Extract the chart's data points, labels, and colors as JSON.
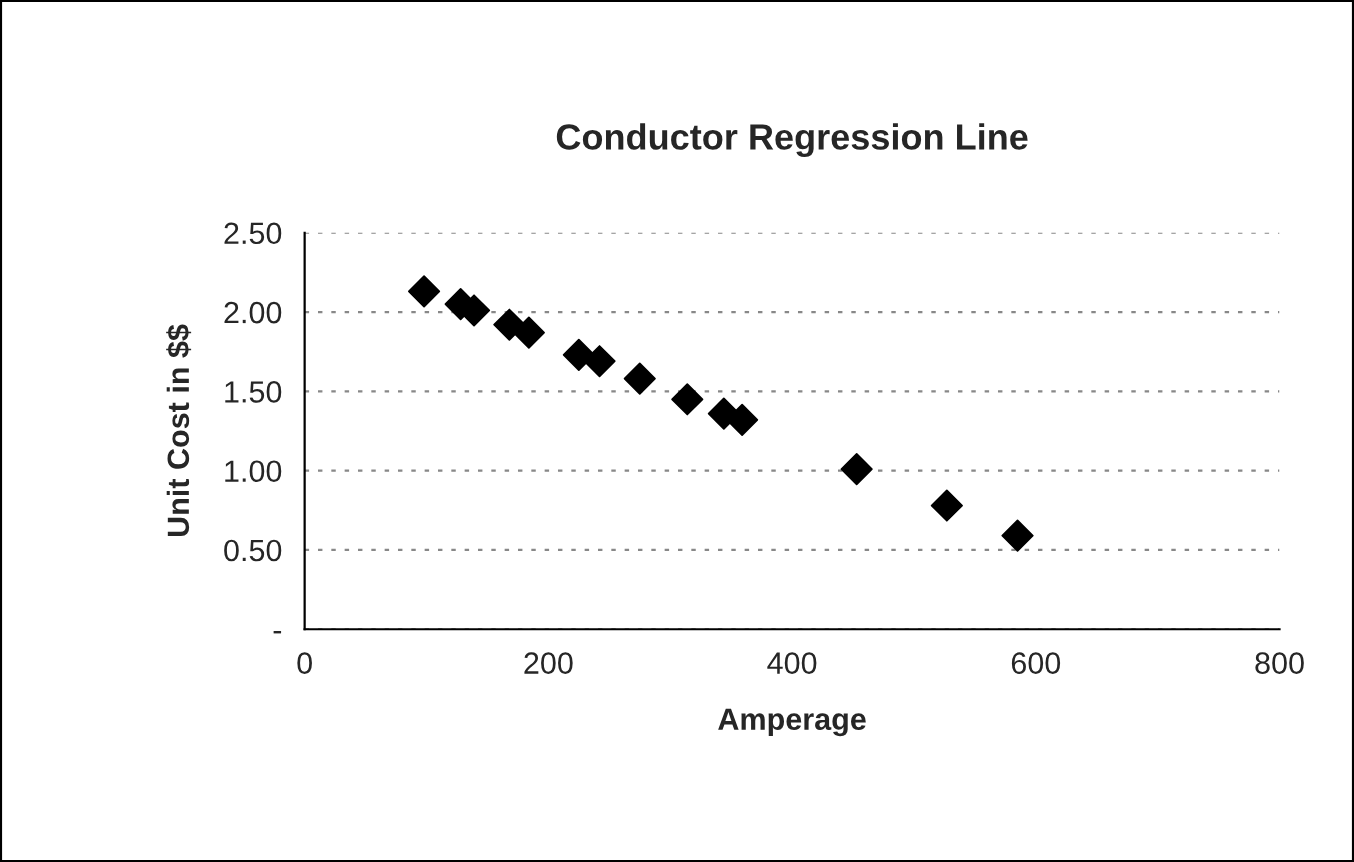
{
  "chart_data": {
    "type": "scatter",
    "title": "Conductor Regression Line",
    "xlabel": "Amperage",
    "ylabel": "Unit Cost in $$",
    "x": [
      98,
      128,
      139,
      168,
      184,
      225,
      242,
      275,
      314,
      344,
      359,
      453,
      527,
      585
    ],
    "series": [
      {
        "color": "#000000",
        "values": [
          2.13,
          2.05,
          2.01,
          1.92,
          1.87,
          1.73,
          1.69,
          1.58,
          1.45,
          1.36,
          1.32,
          1.01,
          0.78,
          0.59
        ]
      }
    ],
    "marker": "diamond",
    "grid": "y",
    "legend": false,
    "xlim": [
      0,
      800
    ],
    "xticks": [
      0,
      200,
      400,
      600,
      800
    ],
    "ylim": [
      0,
      2.5
    ],
    "yticks": [
      {
        "value": 0,
        "label": "-"
      },
      {
        "value": 0.5,
        "label": "0.50"
      },
      {
        "value": 1.0,
        "label": "1.00"
      },
      {
        "value": 1.5,
        "label": "1.50"
      },
      {
        "value": 2.0,
        "label": "2.00"
      },
      {
        "value": 2.5,
        "label": "2.50"
      }
    ]
  }
}
